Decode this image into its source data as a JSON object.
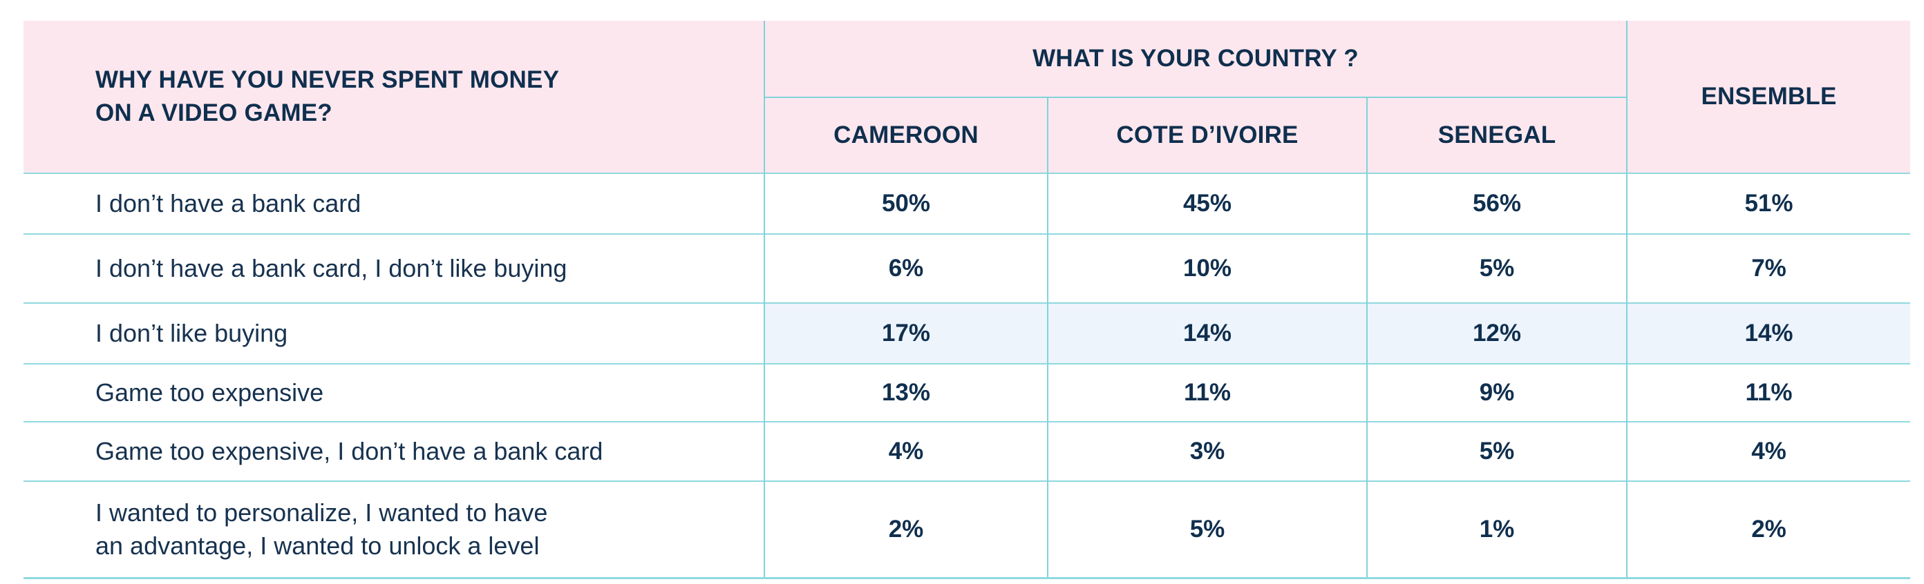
{
  "chart_data": {
    "type": "table",
    "question_header": [
      "WHY HAVE YOU NEVER SPENT MONEY",
      "ON A VIDEO GAME?"
    ],
    "group_header": "WHAT IS YOUR COUNTRY ?",
    "columns": [
      "CAMEROON",
      "COTE D’IVOIRE",
      "SENEGAL"
    ],
    "total_header": "ENSEMBLE",
    "highlight_color": "#edf4fc",
    "header_color": "#fde7ee",
    "rows": [
      {
        "label": [
          "I don’t have a bank card"
        ],
        "values": [
          "50%",
          "45%",
          "56%",
          "51%"
        ]
      },
      {
        "label": [
          "I don’t have a bank card, I don’t like buying"
        ],
        "values": [
          "6%",
          "10%",
          "5%",
          "7%"
        ]
      },
      {
        "label": [
          "I don’t like buying"
        ],
        "values": [
          "17%",
          "14%",
          "12%",
          "14%"
        ],
        "highlighted": true
      },
      {
        "label": [
          "Game too expensive"
        ],
        "values": [
          "13%",
          "11%",
          "9%",
          "11%"
        ]
      },
      {
        "label": [
          "Game too expensive, I don’t have a bank card"
        ],
        "values": [
          "4%",
          "3%",
          "5%",
          "4%"
        ]
      },
      {
        "label": [
          "I wanted to personalize, I wanted to have",
          "an advantage, I wanted to unlock a level"
        ],
        "values": [
          "2%",
          "5%",
          "1%",
          "2%"
        ]
      }
    ]
  }
}
